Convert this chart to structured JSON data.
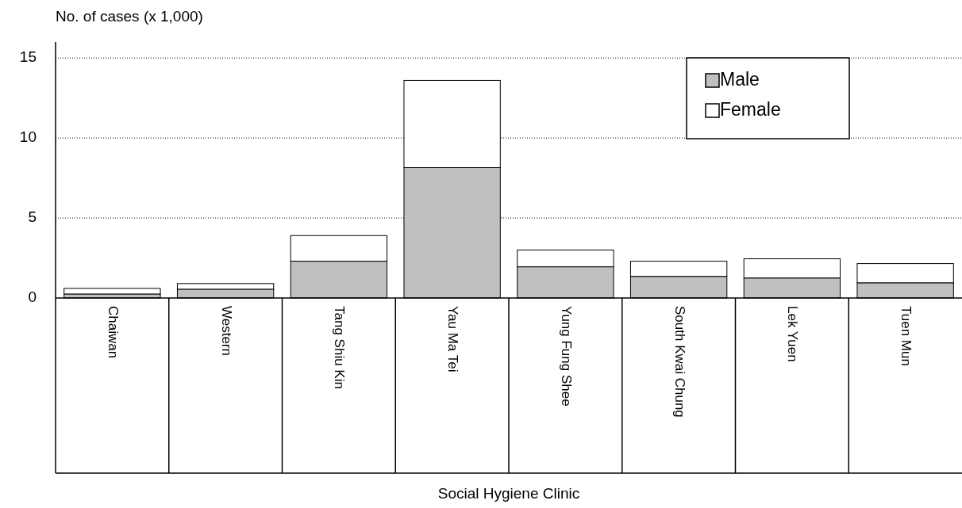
{
  "chart_data": {
    "type": "bar",
    "stacked": true,
    "ylabel": "No. of cases (x 1,000)",
    "xlabel": "Social Hygiene Clinic",
    "categories": [
      "Chaiwan",
      "Western",
      "Tang Shiu Kin",
      "Yau Ma Tei",
      "Yung Fung Shee",
      "South Kwai Chung",
      "Lek Yuen",
      "Tuen Mun"
    ],
    "series": [
      {
        "name": "Male",
        "color": "#c0c0c0",
        "values": [
          0.25,
          0.55,
          2.3,
          8.15,
          1.95,
          1.35,
          1.25,
          0.95
        ]
      },
      {
        "name": "Female",
        "color": "#ffffff",
        "values": [
          0.35,
          0.35,
          1.6,
          5.45,
          1.05,
          0.95,
          1.2,
          1.2
        ]
      }
    ],
    "ylim": [
      0,
      16
    ],
    "yticks": [
      0,
      5,
      10,
      15
    ],
    "grid": "y",
    "legend": "top right"
  }
}
